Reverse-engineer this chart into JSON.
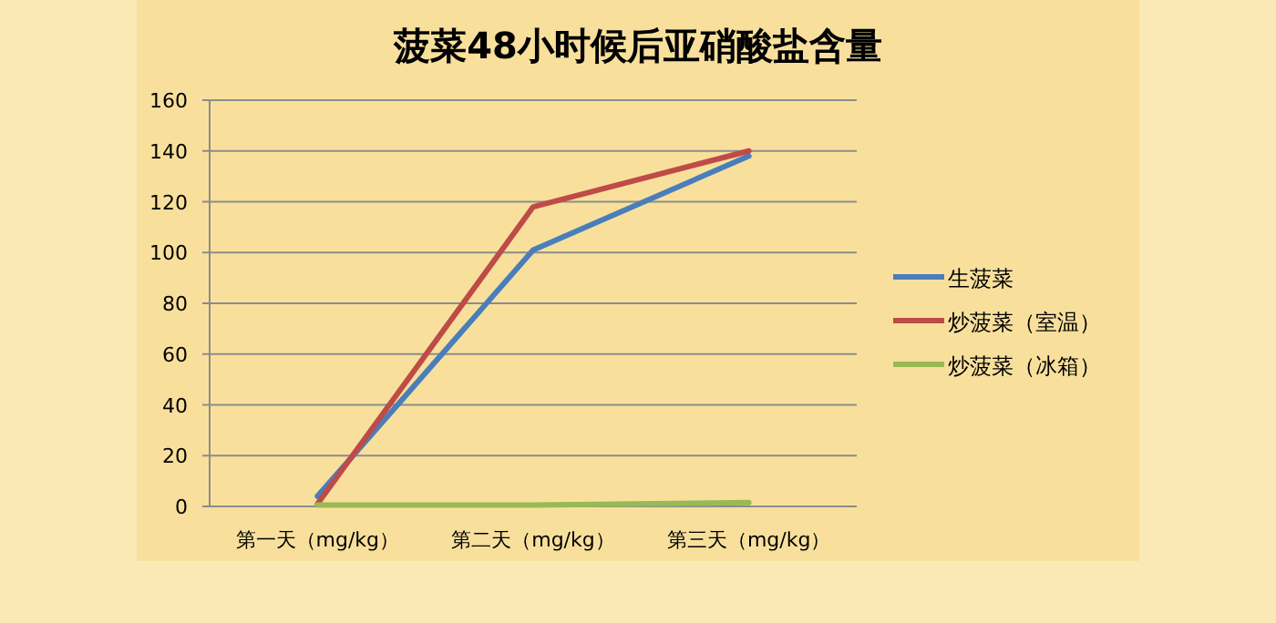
{
  "chart_data": {
    "type": "line",
    "title": "菠菜48小时候后亚硝酸盐含量",
    "categories": [
      "第一天（mg/kg）",
      "第二天（mg/kg）",
      "第三天（mg/kg）"
    ],
    "series": [
      {
        "name": "生菠菜",
        "color": "#4a7ebb",
        "values": [
          4,
          101,
          138
        ]
      },
      {
        "name": "炒菠菜（室温）",
        "color": "#be4b48",
        "values": [
          1,
          118,
          140
        ]
      },
      {
        "name": "炒菠菜（冰箱）",
        "color": "#98b954",
        "values": [
          0.5,
          0.5,
          1.5
        ]
      }
    ],
    "ylim": [
      0,
      160
    ],
    "yticks": [
      0,
      20,
      40,
      60,
      80,
      100,
      120,
      140,
      160
    ],
    "grid": "y",
    "legend": "right",
    "marker": "none",
    "line_style": "solid"
  }
}
